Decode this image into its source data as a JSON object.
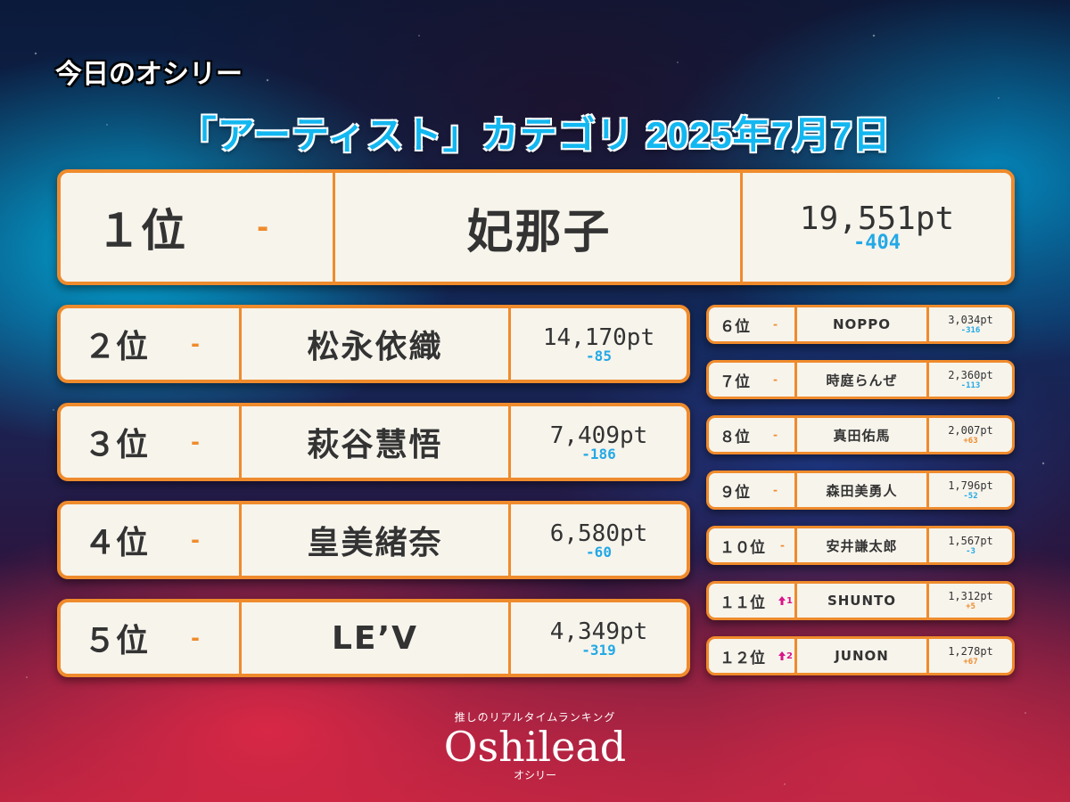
{
  "header": {
    "title": "今日のオシリー",
    "subtitle": "「アーティスト」カテゴリ 2025年7月7日"
  },
  "top": {
    "rank": "１位",
    "move": "-",
    "name": "妃那子",
    "points": "19,551pt",
    "delta": "-404"
  },
  "left_ranks": [
    {
      "rank": "２位",
      "move": "-",
      "name": "松永依織",
      "points": "14,170pt",
      "delta": "-85"
    },
    {
      "rank": "３位",
      "move": "-",
      "name": "萩谷慧悟",
      "points": "7,409pt",
      "delta": "-186"
    },
    {
      "rank": "４位",
      "move": "-",
      "name": "皇美緒奈",
      "points": "6,580pt",
      "delta": "-60"
    },
    {
      "rank": "５位",
      "move": "-",
      "name": "LE’V",
      "points": "4,349pt",
      "delta": "-319"
    }
  ],
  "right_ranks": [
    {
      "rank": "６位",
      "move": "-",
      "name": "NOPPO",
      "points": "3,034pt",
      "delta": "-316"
    },
    {
      "rank": "７位",
      "move": "-",
      "name": "時庭らんぜ",
      "points": "2,360pt",
      "delta": "-113"
    },
    {
      "rank": "８位",
      "move": "-",
      "name": "真田佑馬",
      "points": "2,007pt",
      "delta": "+63"
    },
    {
      "rank": "９位",
      "move": "-",
      "name": "森田美勇人",
      "points": "1,796pt",
      "delta": "-52"
    },
    {
      "rank": "１０位",
      "move": "-",
      "name": "安井謙太郎",
      "points": "1,567pt",
      "delta": "-3"
    },
    {
      "rank": "１１位",
      "move": "1",
      "name": "SHUNTO",
      "points": "1,312pt",
      "delta": "+5"
    },
    {
      "rank": "１２位",
      "move": "2",
      "name": "JUNON",
      "points": "1,278pt",
      "delta": "+67"
    }
  ],
  "logo": {
    "tagline": "推しのリアルタイムランキング",
    "wordmark": "Oshilead",
    "kana": "オシリー"
  },
  "colors": {
    "accent": "#ef8b2c",
    "negative": "#23a9e6",
    "positive": "#ef8b2c",
    "card": "#f7f4ec",
    "rising": "#d9148a"
  }
}
